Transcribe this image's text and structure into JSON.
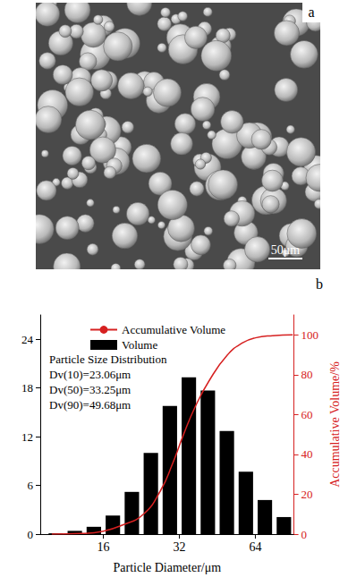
{
  "panel_a": {
    "label": "a",
    "scale_bar": "50μm"
  },
  "chart_data": {
    "type": "histogram",
    "label": "b",
    "x_label": "Particle Diameter/μm",
    "y2_label": "Accumulative Volume/%",
    "log": "x",
    "xlim": [
      9,
      91
    ],
    "xticks": [
      16,
      32,
      64
    ],
    "ylim": [
      0,
      27
    ],
    "yticks": [
      0,
      6,
      12,
      18,
      24
    ],
    "y2lim": [
      0,
      110
    ],
    "y2ticks": [
      0,
      20,
      40,
      60,
      80,
      100
    ],
    "grid": false,
    "legend": "upper left",
    "series": [
      {
        "name": "Accumulative Volume",
        "type": "line",
        "color": "#d62020",
        "axis": "y2",
        "x": [
          10,
          13,
          16,
          19,
          23.06,
          27,
          30,
          33.25,
          37,
          42,
          49.68,
          57,
          64,
          75,
          90
        ],
        "values": [
          0,
          0.3,
          1.5,
          4.5,
          10,
          22,
          35,
          50,
          64,
          77,
          90,
          96,
          98.5,
          99.6,
          100
        ]
      },
      {
        "name": "Volume",
        "type": "bar",
        "color": "#000000",
        "bins": [
          9.51,
          11.31,
          13.45,
          16,
          19.03,
          22.63,
          26.91,
          32,
          38.05,
          45.25,
          53.82,
          64,
          76.11,
          90.51
        ],
        "values": [
          0.1,
          0.4,
          0.9,
          2.3,
          5.2,
          10.0,
          15.8,
          19.3,
          17.7,
          12.7,
          7.7,
          4.2,
          2.1
        ]
      }
    ],
    "annotations": [
      "Particle Size Distribution",
      "Dv(10)=23.06μm",
      "Dv(50)=33.25μm",
      "Dv(90)=49.68μm"
    ]
  }
}
